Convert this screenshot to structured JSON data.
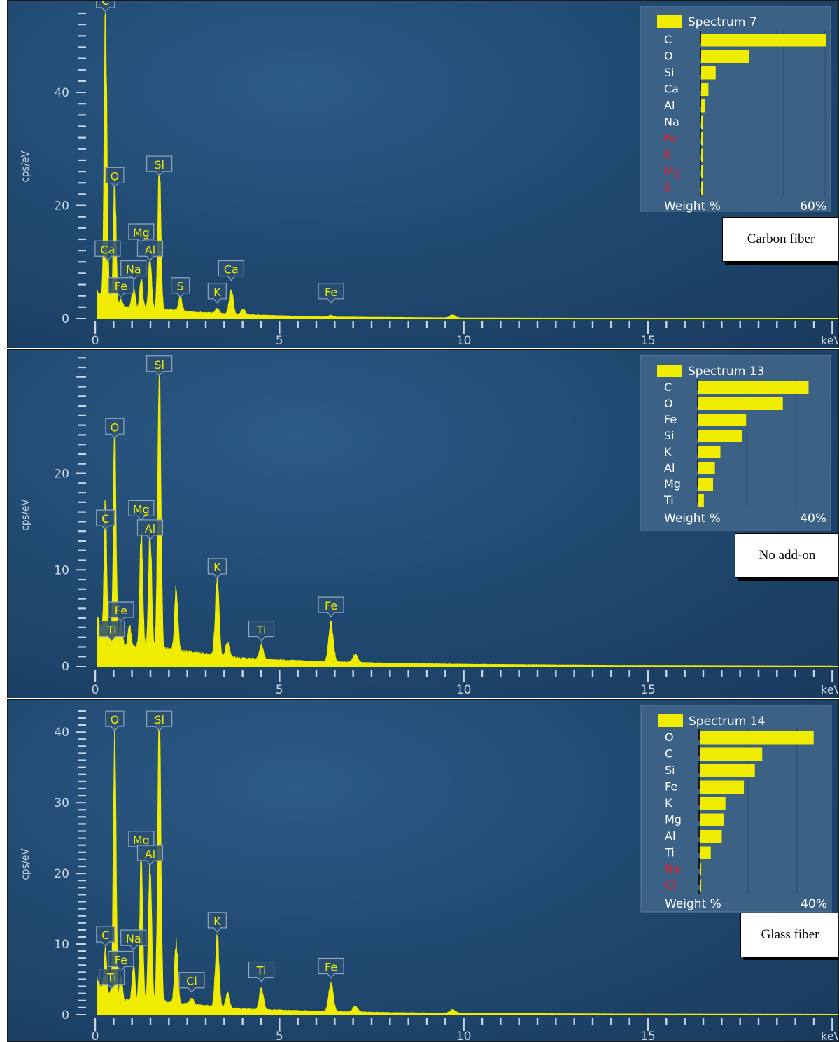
{
  "panels": [
    {
      "caption": "Carbon fiber",
      "ylabel": "cps/eV",
      "xunit": "keV",
      "legend": {
        "title": "Spectrum 7",
        "items": [
          {
            "element": "C",
            "value": 60,
            "color": "#ffffff"
          },
          {
            "element": "O",
            "value": 23,
            "color": "#ffffff"
          },
          {
            "element": "Si",
            "value": 7,
            "color": "#ffffff"
          },
          {
            "element": "Ca",
            "value": 3.5,
            "color": "#ffffff"
          },
          {
            "element": "Al",
            "value": 2,
            "color": "#ffffff"
          },
          {
            "element": "Na",
            "value": 0.5,
            "color": "#ffffff"
          },
          {
            "element": "Fe",
            "value": 0.3,
            "color": "#e8202a"
          },
          {
            "element": "K",
            "value": 0.3,
            "color": "#e8202a"
          },
          {
            "element": "Mg",
            "value": 0.3,
            "color": "#e8202a"
          },
          {
            "element": "S",
            "value": 0.2,
            "color": "#e8202a"
          }
        ],
        "xlabel": "Weight %",
        "xmax_label": "60%",
        "xmax": 60
      }
    },
    {
      "caption": "No add-on",
      "ylabel": "cps/eV",
      "xunit": "keV",
      "legend": {
        "title": "Spectrum 13",
        "items": [
          {
            "element": "C",
            "value": 30,
            "color": "#ffffff"
          },
          {
            "element": "O",
            "value": 23,
            "color": "#ffffff"
          },
          {
            "element": "Fe",
            "value": 13,
            "color": "#ffffff"
          },
          {
            "element": "Si",
            "value": 12,
            "color": "#ffffff"
          },
          {
            "element": "K",
            "value": 6,
            "color": "#ffffff"
          },
          {
            "element": "Al",
            "value": 4.5,
            "color": "#ffffff"
          },
          {
            "element": "Mg",
            "value": 4,
            "color": "#ffffff"
          },
          {
            "element": "Ti",
            "value": 1.5,
            "color": "#ffffff"
          }
        ],
        "xlabel": "Weight %",
        "xmax_label": "40%",
        "xmax": 40
      }
    },
    {
      "caption": "Glass fiber",
      "ylabel": "cps/eV",
      "xunit": "keV",
      "legend": {
        "title": "Spectrum 14",
        "items": [
          {
            "element": "O",
            "value": 31,
            "color": "#ffffff"
          },
          {
            "element": "C",
            "value": 17,
            "color": "#ffffff"
          },
          {
            "element": "Si",
            "value": 15,
            "color": "#ffffff"
          },
          {
            "element": "Fe",
            "value": 12,
            "color": "#ffffff"
          },
          {
            "element": "K",
            "value": 7,
            "color": "#ffffff"
          },
          {
            "element": "Mg",
            "value": 6.5,
            "color": "#ffffff"
          },
          {
            "element": "Al",
            "value": 6,
            "color": "#ffffff"
          },
          {
            "element": "Ti",
            "value": 3,
            "color": "#ffffff"
          },
          {
            "element": "Na",
            "value": 0.3,
            "color": "#e8202a"
          },
          {
            "element": "Cl",
            "value": 0.2,
            "color": "#e8202a"
          }
        ],
        "xlabel": "Weight %",
        "xmax_label": "40%",
        "xmax": 40
      }
    }
  ],
  "chart_data": [
    {
      "type": "line",
      "title": "",
      "xlabel": "keV",
      "ylabel": "cps/eV",
      "xlim": [
        0,
        20
      ],
      "ylim": [
        0,
        54
      ],
      "yticks": [
        0,
        20,
        40
      ],
      "xticks": [
        0,
        5,
        10,
        15
      ],
      "line_color": "#f0ec00",
      "baseline": {
        "points": [
          [
            0.05,
            5
          ],
          [
            0.3,
            2.5
          ],
          [
            0.7,
            2
          ],
          [
            1.5,
            1.8
          ],
          [
            2.5,
            1.2
          ],
          [
            4,
            0.7
          ],
          [
            6,
            0.3
          ],
          [
            8,
            0.2
          ],
          [
            10,
            0.1
          ],
          [
            14,
            0.05
          ],
          [
            20,
            0.02
          ]
        ]
      },
      "peaks": [
        {
          "label": "C",
          "x": 0.28,
          "y": 54
        },
        {
          "label": "O",
          "x": 0.53,
          "y": 23
        },
        {
          "label": "Ca",
          "x": 0.34,
          "y": 8
        },
        {
          "label": "Na",
          "x": 1.04,
          "y": 4
        },
        {
          "label": "Mg",
          "x": 1.25,
          "y": 5
        },
        {
          "label": "Al",
          "x": 1.49,
          "y": 9
        },
        {
          "label": "Si",
          "x": 1.74,
          "y": 25
        },
        {
          "label": "S",
          "x": 2.31,
          "y": 2.5
        },
        {
          "label": "K",
          "x": 3.31,
          "y": 0.8
        },
        {
          "label": "Ca",
          "x": 3.69,
          "y": 4.5
        },
        {
          "label": "Fe",
          "x": 0.7,
          "y": 1.5
        },
        {
          "label": "Fe",
          "x": 6.4,
          "y": 0.3
        }
      ],
      "extra_peaks": [
        {
          "x": 4.01,
          "y": 1
        },
        {
          "x": 9.7,
          "y": 0.5
        }
      ],
      "labels": [
        {
          "text": "C",
          "x": 0.28,
          "y": 54
        },
        {
          "text": "O",
          "x": 0.53,
          "y": 23
        },
        {
          "text": "Si",
          "x": 1.74,
          "y": 25
        },
        {
          "text": "Mg",
          "x": 1.25,
          "y": 13
        },
        {
          "text": "Al",
          "x": 1.49,
          "y": 10
        },
        {
          "text": "Ca",
          "x": 0.34,
          "y": 10
        },
        {
          "text": "Na",
          "x": 1.04,
          "y": 6.5
        },
        {
          "text": "Fe",
          "x": 0.7,
          "y": 3.5
        },
        {
          "text": "S",
          "x": 2.31,
          "y": 3.5
        },
        {
          "text": "K",
          "x": 3.31,
          "y": 2.5
        },
        {
          "text": "Ca",
          "x": 3.69,
          "y": 6.5
        },
        {
          "text": "Fe",
          "x": 6.4,
          "y": 2.5
        }
      ]
    },
    {
      "type": "line",
      "title": "",
      "xlabel": "keV",
      "ylabel": "cps/eV",
      "xlim": [
        0,
        20
      ],
      "ylim": [
        0,
        31
      ],
      "yticks": [
        0,
        10,
        20
      ],
      "xticks": [
        0,
        5,
        10,
        15
      ],
      "line_color": "#f0ec00",
      "baseline": {
        "points": [
          [
            0.05,
            5
          ],
          [
            0.3,
            2.5
          ],
          [
            0.8,
            2
          ],
          [
            1.5,
            2
          ],
          [
            2.5,
            1.5
          ],
          [
            4,
            0.8
          ],
          [
            6,
            0.5
          ],
          [
            8,
            0.3
          ],
          [
            10,
            0.2
          ],
          [
            14,
            0.1
          ],
          [
            20,
            0.05
          ]
        ]
      },
      "peaks": [
        {
          "label": "C",
          "x": 0.28,
          "y": 14
        },
        {
          "label": "O",
          "x": 0.53,
          "y": 23
        },
        {
          "label": "Mg",
          "x": 1.25,
          "y": 12
        },
        {
          "label": "Al",
          "x": 1.49,
          "y": 12
        },
        {
          "label": "Si",
          "x": 1.74,
          "y": 30
        },
        {
          "label": "K",
          "x": 3.31,
          "y": 8
        },
        {
          "label": "Ti",
          "x": 4.51,
          "y": 1.5
        },
        {
          "label": "Fe",
          "x": 6.4,
          "y": 4
        },
        {
          "label": "Fe",
          "x": 0.7,
          "y": 3
        },
        {
          "label": "Ti",
          "x": 0.45,
          "y": 2
        }
      ],
      "extra_peaks": [
        {
          "x": 2.2,
          "y": 6.5
        },
        {
          "x": 3.59,
          "y": 1.5
        },
        {
          "x": 7.06,
          "y": 0.8
        },
        {
          "x": 0.93,
          "y": 2.5
        }
      ],
      "labels": [
        {
          "text": "Si",
          "x": 1.74,
          "y": 30
        },
        {
          "text": "O",
          "x": 0.53,
          "y": 23.5
        },
        {
          "text": "C",
          "x": 0.28,
          "y": 14
        },
        {
          "text": "Mg",
          "x": 1.25,
          "y": 15
        },
        {
          "text": "Al",
          "x": 1.49,
          "y": 13
        },
        {
          "text": "K",
          "x": 3.31,
          "y": 9
        },
        {
          "text": "Fe",
          "x": 0.7,
          "y": 4.5
        },
        {
          "text": "Ti",
          "x": 0.45,
          "y": 2.5
        },
        {
          "text": "Ti",
          "x": 4.51,
          "y": 2.5
        },
        {
          "text": "Fe",
          "x": 6.4,
          "y": 5
        }
      ]
    },
    {
      "type": "line",
      "title": "",
      "xlabel": "keV",
      "ylabel": "cps/eV",
      "xlim": [
        0,
        20
      ],
      "ylim": [
        0,
        42
      ],
      "yticks": [
        0,
        10,
        20,
        30,
        40
      ],
      "xticks": [
        0,
        5,
        10,
        15
      ],
      "line_color": "#f0ec00",
      "baseline": {
        "points": [
          [
            0.05,
            5
          ],
          [
            0.3,
            2.5
          ],
          [
            0.8,
            2
          ],
          [
            1.5,
            2
          ],
          [
            2.5,
            1.5
          ],
          [
            4,
            0.8
          ],
          [
            6,
            0.5
          ],
          [
            8,
            0.3
          ],
          [
            10,
            0.2
          ],
          [
            14,
            0.1
          ],
          [
            20,
            0.05
          ]
        ]
      },
      "peaks": [
        {
          "label": "O",
          "x": 0.53,
          "y": 40
        },
        {
          "label": "Si",
          "x": 1.74,
          "y": 40
        },
        {
          "label": "C",
          "x": 0.28,
          "y": 7
        },
        {
          "label": "Na",
          "x": 1.04,
          "y": 5
        },
        {
          "label": "Mg",
          "x": 1.25,
          "y": 20
        },
        {
          "label": "Al",
          "x": 1.49,
          "y": 20
        },
        {
          "label": "K",
          "x": 3.31,
          "y": 10
        },
        {
          "label": "Ti",
          "x": 4.51,
          "y": 3
        },
        {
          "label": "Fe",
          "x": 6.4,
          "y": 4
        },
        {
          "label": "Cl",
          "x": 2.62,
          "y": 1
        },
        {
          "label": "Fe",
          "x": 0.7,
          "y": 3
        },
        {
          "label": "Ti",
          "x": 0.45,
          "y": 2
        }
      ],
      "extra_peaks": [
        {
          "x": 2.2,
          "y": 8.5
        },
        {
          "x": 3.59,
          "y": 2
        },
        {
          "x": 7.06,
          "y": 0.8
        },
        {
          "x": 9.7,
          "y": 0.5
        }
      ],
      "labels": [
        {
          "text": "O",
          "x": 0.53,
          "y": 40
        },
        {
          "text": "Si",
          "x": 1.74,
          "y": 40
        },
        {
          "text": "Mg",
          "x": 1.25,
          "y": 23
        },
        {
          "text": "Al",
          "x": 1.49,
          "y": 21
        },
        {
          "text": "C",
          "x": 0.28,
          "y": 9.5
        },
        {
          "text": "Na",
          "x": 1.04,
          "y": 9
        },
        {
          "text": "Fe",
          "x": 0.7,
          "y": 6
        },
        {
          "text": "Ti",
          "x": 0.45,
          "y": 3.5
        },
        {
          "text": "Cl",
          "x": 2.62,
          "y": 3
        },
        {
          "text": "K",
          "x": 3.31,
          "y": 11.5
        },
        {
          "text": "Ti",
          "x": 4.51,
          "y": 4.5
        },
        {
          "text": "Fe",
          "x": 6.4,
          "y": 5
        }
      ]
    }
  ]
}
